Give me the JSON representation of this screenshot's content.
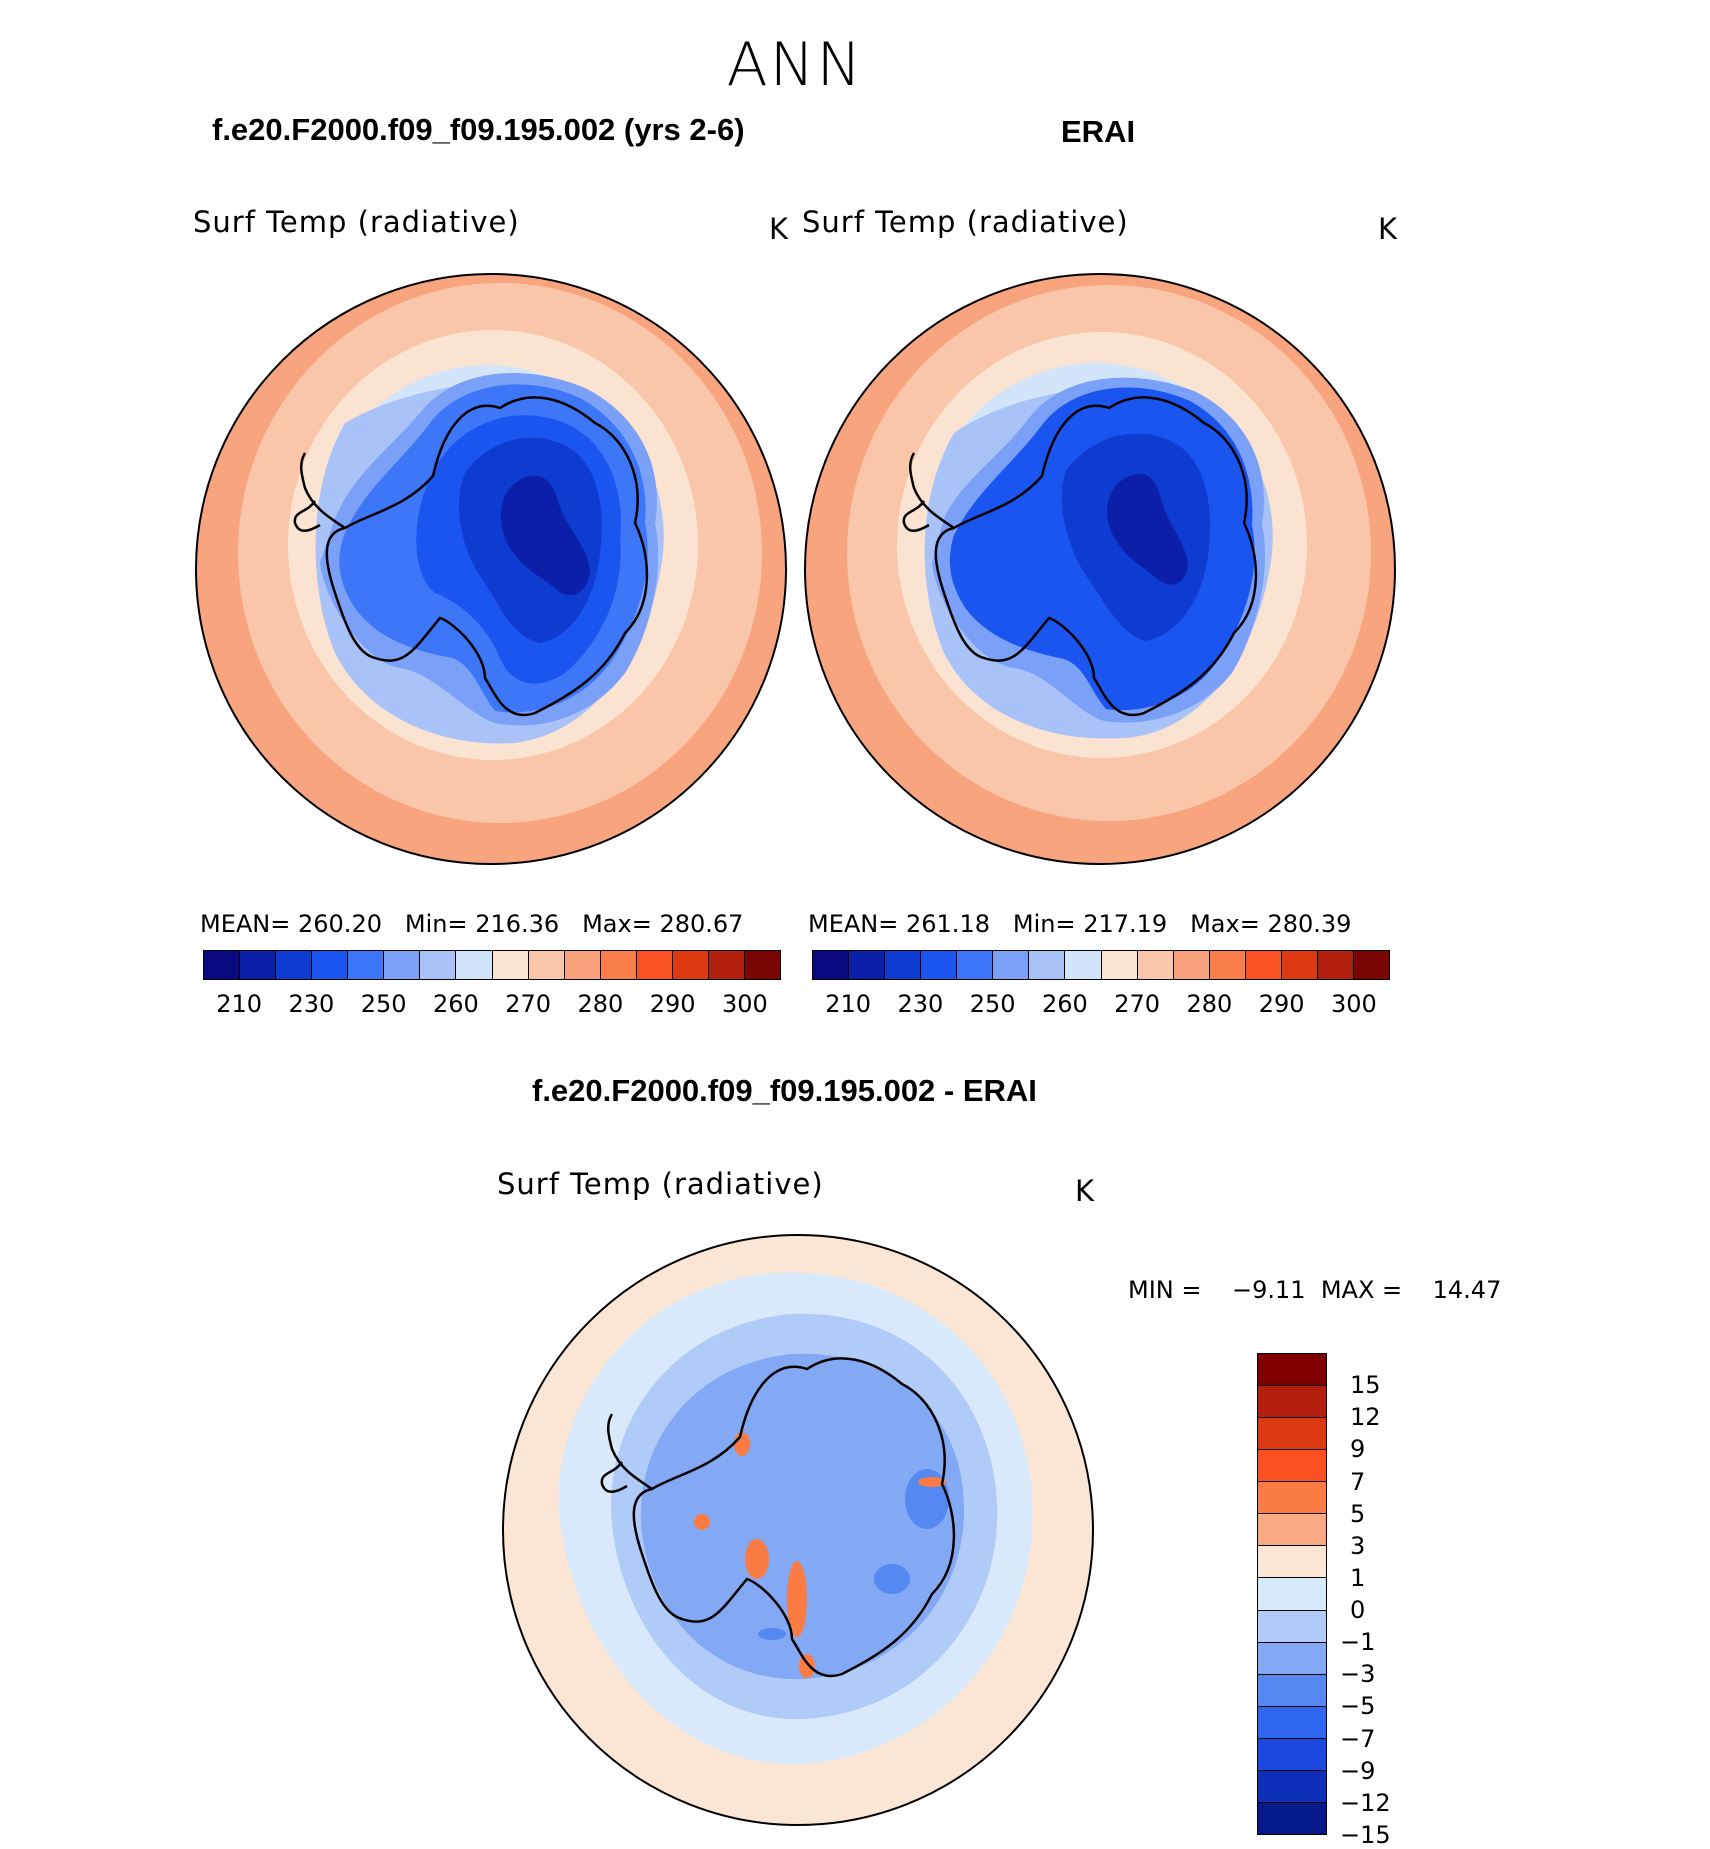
{
  "title": "ANN",
  "panels": {
    "model": {
      "case_title": "f.e20.F2000.f09_f09.195.002 (yrs 2-6)",
      "variable": "Surf Temp (radiative)",
      "units": "K",
      "stats": {
        "mean_label": "MEAN=",
        "mean": "260.20",
        "min_label": "Min=",
        "min": "216.36",
        "max_label": "Max=",
        "max": "280.67"
      }
    },
    "obs": {
      "case_title": "ERAI",
      "variable": "Surf Temp (radiative)",
      "units": "K",
      "stats": {
        "mean_label": "MEAN=",
        "mean": "261.18",
        "min_label": "Min=",
        "min": "217.19",
        "max_label": "Max=",
        "max": "280.39"
      }
    },
    "diff": {
      "case_title": "f.e20.F2000.f09_f09.195.002 - ERAI",
      "variable": "Surf Temp (radiative)",
      "units": "K",
      "minmax": {
        "min_label": "MIN =",
        "min": "−9.11",
        "max_label": "MAX =",
        "max": "14.47"
      }
    }
  },
  "colorbars": {
    "abs_colors": [
      "#0a0a80",
      "#0b1fa8",
      "#0e3bd0",
      "#1a55f0",
      "#3d77f8",
      "#7aa0f8",
      "#a9c3f9",
      "#d3e5fb",
      "#fbe3d1",
      "#fbc7ab",
      "#f9a07c",
      "#f97e4a",
      "#f95323",
      "#dd3a12",
      "#b0200c",
      "#7a0505"
    ],
    "abs_ticks": [
      "210",
      "230",
      "250",
      "260",
      "270",
      "280",
      "290",
      "300"
    ],
    "diff_colors": [
      "#800000",
      "#b41e0c",
      "#dc3812",
      "#fc5020",
      "#fa7c44",
      "#f9aa82",
      "#fbe6d5",
      "#d7e9fb",
      "#b0cbf8",
      "#83a9f5",
      "#5688f2",
      "#2f66ef",
      "#1b49e0",
      "#0e30b8",
      "#061a8a"
    ],
    "diff_ticks": [
      "15",
      "12",
      "9",
      "7",
      "5",
      "3",
      "1",
      "0",
      "−1",
      "−3",
      "−5",
      "−7",
      "−9",
      "−12",
      "−15"
    ]
  },
  "map_colors": {
    "ocean_warm": "#f8a47e",
    "ocean_mid": "#fac6aa",
    "ocean_cool": "#fbe3d1",
    "sea_ice": "#d3e5fb",
    "ice_edge": "#a9c3f9",
    "coast_low": "#7aa0f8",
    "plateau1": "#3d77f8",
    "plateau2": "#1a55f0",
    "plateau3": "#0e3bd0",
    "plateau4": "#0b1fa8",
    "diff_bg": "#fbe6d5",
    "diff_neg1": "#d7e9fb",
    "diff_neg2": "#b0cbf8",
    "diff_neg3": "#83a9f5",
    "diff_neg4": "#5688f2",
    "diff_pos": "#fa7c44"
  }
}
